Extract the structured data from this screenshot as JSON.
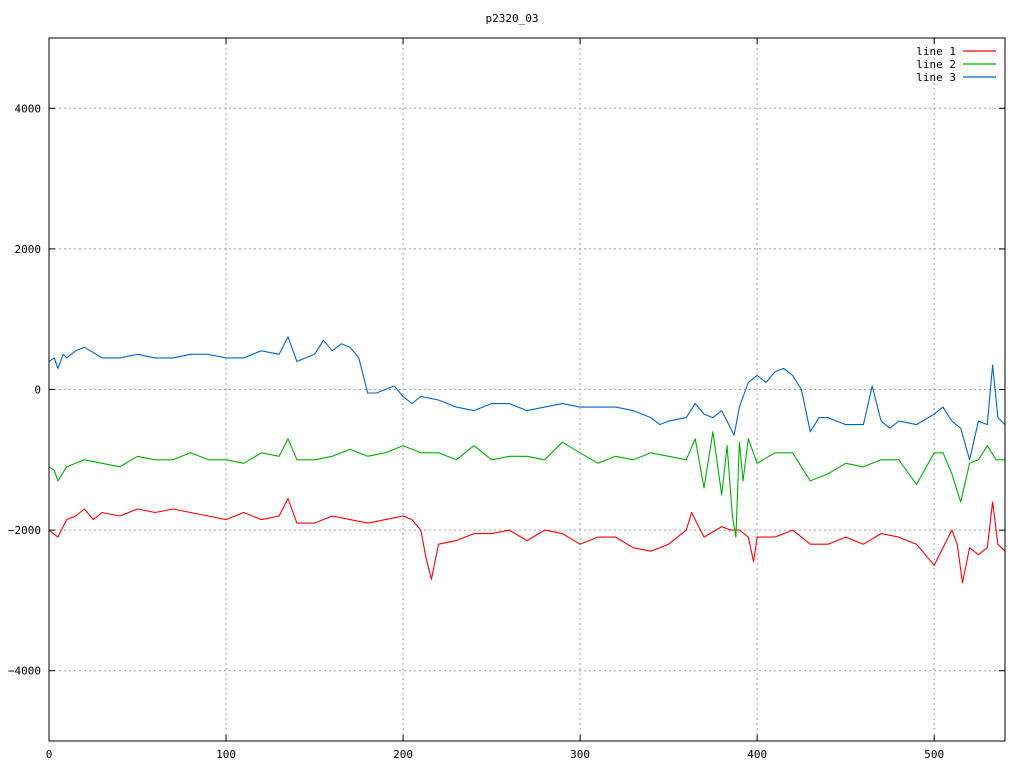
{
  "chart_data": {
    "type": "line",
    "title": "p2320_03",
    "xlabel": "",
    "ylabel": "",
    "xlim": [
      0,
      540
    ],
    "ylim": [
      -5000,
      5000
    ],
    "xticks": [
      0,
      100,
      200,
      300,
      400,
      500
    ],
    "yticks": [
      -4000,
      -2000,
      0,
      2000,
      4000
    ],
    "grid": true,
    "legend_position": "top-right",
    "series": [
      {
        "name": "line 1",
        "color": "#ff0000",
        "x": [
          0,
          5,
          10,
          15,
          20,
          25,
          30,
          40,
          50,
          60,
          70,
          80,
          90,
          100,
          110,
          120,
          130,
          135,
          140,
          150,
          160,
          170,
          180,
          190,
          200,
          205,
          210,
          213,
          216,
          220,
          230,
          240,
          250,
          260,
          270,
          280,
          290,
          300,
          310,
          320,
          330,
          340,
          350,
          360,
          363,
          370,
          380,
          385,
          390,
          395,
          398,
          400,
          410,
          420,
          430,
          440,
          450,
          460,
          470,
          480,
          490,
          500,
          503,
          510,
          513,
          516,
          520,
          525,
          530,
          533,
          536,
          540
        ],
        "values": [
          -2000,
          -2100,
          -1850,
          -1800,
          -1700,
          -1850,
          -1750,
          -1800,
          -1700,
          -1750,
          -1700,
          -1750,
          -1800,
          -1850,
          -1750,
          -1850,
          -1800,
          -1550,
          -1900,
          -1900,
          -1800,
          -1850,
          -1900,
          -1850,
          -1800,
          -1850,
          -2000,
          -2400,
          -2700,
          -2200,
          -2150,
          -2050,
          -2050,
          -2000,
          -2150,
          -2000,
          -2050,
          -2200,
          -2100,
          -2100,
          -2250,
          -2300,
          -2200,
          -2000,
          -1750,
          -2100,
          -1950,
          -2000,
          -2000,
          -2100,
          -2450,
          -2100,
          -2100,
          -2000,
          -2200,
          -2200,
          -2100,
          -2200,
          -2050,
          -2100,
          -2200,
          -2500,
          -2350,
          -2000,
          -2200,
          -2750,
          -2250,
          -2350,
          -2250,
          -1600,
          -2200,
          -2300
        ]
      },
      {
        "name": "line 2",
        "color": "#00b000",
        "x": [
          0,
          3,
          5,
          10,
          20,
          30,
          40,
          50,
          60,
          70,
          80,
          90,
          100,
          110,
          120,
          130,
          135,
          140,
          150,
          160,
          170,
          180,
          190,
          200,
          210,
          220,
          230,
          240,
          250,
          260,
          270,
          280,
          290,
          300,
          310,
          320,
          330,
          340,
          350,
          360,
          365,
          370,
          375,
          380,
          383,
          386,
          388,
          390,
          392,
          395,
          400,
          410,
          420,
          430,
          440,
          450,
          460,
          470,
          480,
          490,
          500,
          505,
          510,
          515,
          520,
          525,
          530,
          535,
          540
        ],
        "values": [
          -1100,
          -1150,
          -1300,
          -1100,
          -1000,
          -1050,
          -1100,
          -950,
          -1000,
          -1000,
          -900,
          -1000,
          -1000,
          -1050,
          -900,
          -950,
          -700,
          -1000,
          -1000,
          -950,
          -850,
          -950,
          -900,
          -800,
          -900,
          -900,
          -1000,
          -800,
          -1000,
          -950,
          -950,
          -1000,
          -750,
          -900,
          -1050,
          -950,
          -1000,
          -900,
          -950,
          -1000,
          -700,
          -1400,
          -600,
          -1500,
          -800,
          -1800,
          -2100,
          -750,
          -1300,
          -700,
          -1050,
          -900,
          -900,
          -1300,
          -1200,
          -1050,
          -1100,
          -1000,
          -1000,
          -1350,
          -900,
          -900,
          -1200,
          -1600,
          -1050,
          -1000,
          -800,
          -1000,
          -1000
        ]
      },
      {
        "name": "line 3",
        "color": "#0066cc",
        "x": [
          0,
          3,
          5,
          8,
          10,
          15,
          20,
          30,
          40,
          50,
          60,
          70,
          80,
          90,
          100,
          110,
          120,
          130,
          135,
          140,
          150,
          155,
          160,
          165,
          170,
          175,
          180,
          185,
          190,
          195,
          200,
          205,
          210,
          220,
          230,
          240,
          250,
          260,
          270,
          280,
          290,
          300,
          310,
          320,
          330,
          340,
          345,
          350,
          360,
          365,
          370,
          375,
          380,
          383,
          385,
          387,
          390,
          395,
          400,
          405,
          410,
          415,
          420,
          425,
          430,
          435,
          440,
          450,
          460,
          465,
          470,
          475,
          480,
          490,
          500,
          505,
          510,
          515,
          520,
          525,
          530,
          533,
          536,
          540
        ],
        "values": [
          400,
          450,
          300,
          500,
          450,
          550,
          600,
          450,
          450,
          500,
          450,
          450,
          500,
          500,
          450,
          450,
          550,
          500,
          750,
          400,
          500,
          700,
          550,
          650,
          600,
          450,
          -50,
          -50,
          0,
          50,
          -100,
          -200,
          -100,
          -150,
          -250,
          -300,
          -200,
          -200,
          -300,
          -250,
          -200,
          -250,
          -250,
          -250,
          -300,
          -400,
          -500,
          -450,
          -400,
          -200,
          -350,
          -400,
          -300,
          -450,
          -550,
          -650,
          -250,
          100,
          200,
          100,
          250,
          300,
          200,
          0,
          -600,
          -400,
          -400,
          -500,
          -500,
          50,
          -450,
          -550,
          -450,
          -500,
          -350,
          -250,
          -450,
          -550,
          -1000,
          -450,
          -500,
          350,
          -400,
          -500
        ]
      }
    ]
  }
}
